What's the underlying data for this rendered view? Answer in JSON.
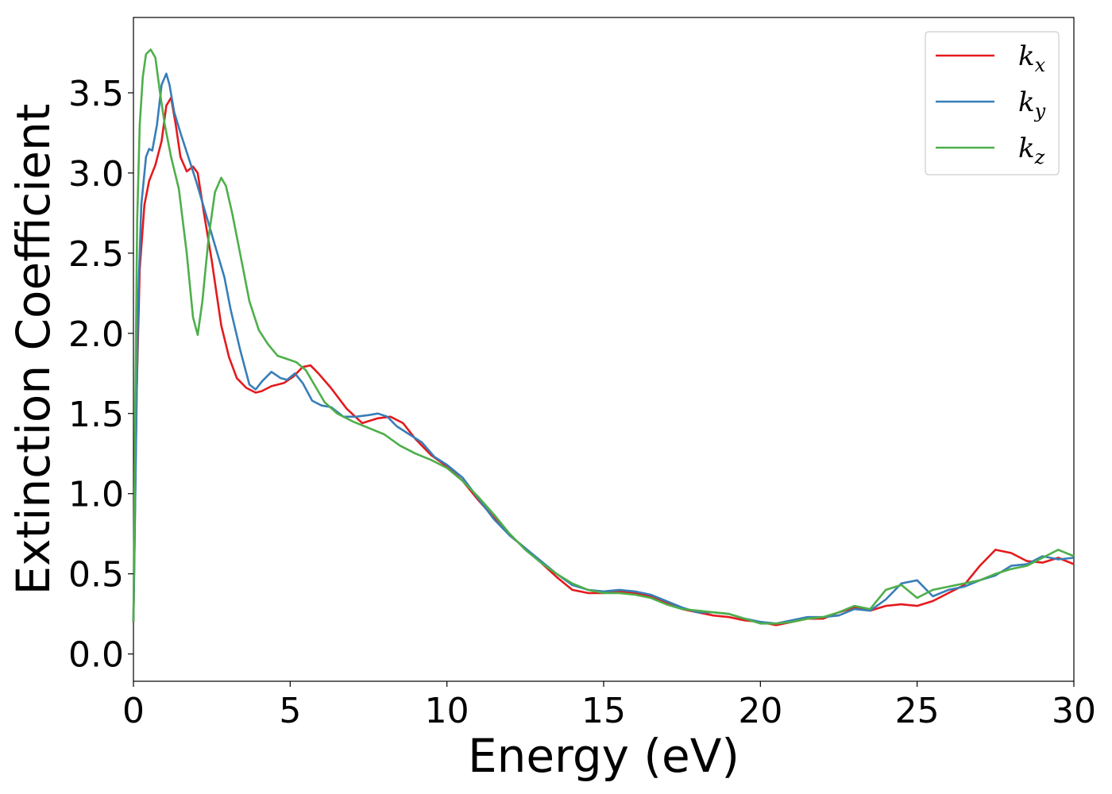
{
  "chart_data": {
    "type": "line",
    "title": "",
    "xlabel": "Energy (eV)",
    "ylabel": "Extinction Coefficient",
    "xlim": [
      0,
      30
    ],
    "ylim": [
      -0.17,
      3.97
    ],
    "xticks": [
      0,
      5,
      10,
      15,
      20,
      25,
      30
    ],
    "xtick_labels": [
      "0",
      "5",
      "10",
      "15",
      "20",
      "25",
      "30"
    ],
    "yticks": [
      0.0,
      0.5,
      1.0,
      1.5,
      2.0,
      2.5,
      3.0,
      3.5
    ],
    "ytick_labels": [
      "0.0",
      "0.5",
      "1.0",
      "1.5",
      "2.0",
      "2.5",
      "3.0",
      "3.5"
    ],
    "grid": false,
    "legend_position": "top-right",
    "series": [
      {
        "name": "kx",
        "base": "k",
        "sub": "x",
        "color": "#e41a1c",
        "x": [
          0,
          0.1,
          0.2,
          0.35,
          0.5,
          0.7,
          0.9,
          1.05,
          1.2,
          1.35,
          1.5,
          1.7,
          1.9,
          2.05,
          2.25,
          2.5,
          2.8,
          3.05,
          3.3,
          3.6,
          3.9,
          4.1,
          4.4,
          4.8,
          5.1,
          5.4,
          5.65,
          5.9,
          6.3,
          6.8,
          7.3,
          7.8,
          8.2,
          8.6,
          9.0,
          9.5,
          10.0,
          10.5,
          11.0,
          11.5,
          12.0,
          12.5,
          13.0,
          13.5,
          14.0,
          14.5,
          15.0,
          15.5,
          16.0,
          16.5,
          17.0,
          17.5,
          18.0,
          18.5,
          19.0,
          19.5,
          20.0,
          20.5,
          21.0,
          21.5,
          22.0,
          22.5,
          23.0,
          23.5,
          24.0,
          24.5,
          25.0,
          25.5,
          26.0,
          26.5,
          27.0,
          27.5,
          28.0,
          28.5,
          29.0,
          29.5,
          30.0
        ],
        "y": [
          0.2,
          1.6,
          2.4,
          2.8,
          2.95,
          3.05,
          3.2,
          3.42,
          3.47,
          3.3,
          3.1,
          3.01,
          3.04,
          3.0,
          2.75,
          2.45,
          2.05,
          1.85,
          1.72,
          1.66,
          1.63,
          1.64,
          1.67,
          1.69,
          1.73,
          1.79,
          1.8,
          1.75,
          1.66,
          1.53,
          1.44,
          1.47,
          1.48,
          1.44,
          1.34,
          1.24,
          1.17,
          1.08,
          0.96,
          0.85,
          0.74,
          0.66,
          0.57,
          0.48,
          0.4,
          0.38,
          0.38,
          0.39,
          0.38,
          0.36,
          0.32,
          0.28,
          0.26,
          0.24,
          0.23,
          0.21,
          0.2,
          0.18,
          0.2,
          0.22,
          0.22,
          0.26,
          0.29,
          0.27,
          0.3,
          0.31,
          0.3,
          0.33,
          0.38,
          0.43,
          0.55,
          0.65,
          0.63,
          0.58,
          0.57,
          0.6,
          0.56
        ]
      },
      {
        "name": "ky",
        "base": "k",
        "sub": "y",
        "color": "#377eb8",
        "x": [
          0,
          0.08,
          0.15,
          0.25,
          0.4,
          0.5,
          0.6,
          0.75,
          0.9,
          1.05,
          1.15,
          1.3,
          1.5,
          1.75,
          2.0,
          2.3,
          2.6,
          2.9,
          3.1,
          3.4,
          3.7,
          3.9,
          4.1,
          4.4,
          4.7,
          4.9,
          5.15,
          5.4,
          5.7,
          6.0,
          6.3,
          6.7,
          7.1,
          7.5,
          7.8,
          8.1,
          8.4,
          8.8,
          9.2,
          9.6,
          10.0,
          10.5,
          11.0,
          11.5,
          12.0,
          12.5,
          13.0,
          13.5,
          14.0,
          14.5,
          15.0,
          15.5,
          16.0,
          16.5,
          17.0,
          17.5,
          18.0,
          18.5,
          19.0,
          19.5,
          20.0,
          20.5,
          21.0,
          21.5,
          22.0,
          22.5,
          23.0,
          23.5,
          24.0,
          24.5,
          25.0,
          25.5,
          26.0,
          26.5,
          27.0,
          27.5,
          28.0,
          28.5,
          29.0,
          29.5,
          30.0
        ],
        "y": [
          0.2,
          1.3,
          2.2,
          2.8,
          3.1,
          3.15,
          3.14,
          3.3,
          3.55,
          3.62,
          3.55,
          3.38,
          3.25,
          3.1,
          2.95,
          2.75,
          2.55,
          2.35,
          2.15,
          1.9,
          1.68,
          1.65,
          1.7,
          1.76,
          1.72,
          1.71,
          1.75,
          1.69,
          1.58,
          1.55,
          1.54,
          1.48,
          1.48,
          1.49,
          1.5,
          1.48,
          1.42,
          1.37,
          1.32,
          1.23,
          1.18,
          1.1,
          0.97,
          0.84,
          0.74,
          0.66,
          0.58,
          0.5,
          0.43,
          0.4,
          0.39,
          0.4,
          0.39,
          0.37,
          0.33,
          0.29,
          0.26,
          0.26,
          0.25,
          0.22,
          0.2,
          0.19,
          0.21,
          0.23,
          0.23,
          0.24,
          0.28,
          0.27,
          0.34,
          0.44,
          0.46,
          0.36,
          0.4,
          0.42,
          0.46,
          0.49,
          0.55,
          0.56,
          0.61,
          0.59,
          0.6
        ]
      },
      {
        "name": "kz",
        "base": "k",
        "sub": "z",
        "color": "#4daf4a",
        "x": [
          0,
          0.06,
          0.12,
          0.2,
          0.3,
          0.4,
          0.55,
          0.7,
          0.85,
          1.0,
          1.2,
          1.45,
          1.7,
          1.9,
          2.05,
          2.2,
          2.4,
          2.6,
          2.8,
          2.95,
          3.15,
          3.4,
          3.7,
          4.0,
          4.3,
          4.6,
          4.9,
          5.2,
          5.5,
          5.8,
          6.1,
          6.5,
          7.0,
          7.5,
          8.0,
          8.5,
          9.0,
          9.5,
          10.0,
          10.5,
          11.0,
          11.5,
          12.0,
          12.5,
          13.0,
          13.5,
          14.0,
          14.5,
          15.0,
          15.5,
          16.0,
          16.5,
          17.0,
          17.5,
          18.0,
          18.5,
          19.0,
          19.5,
          20.0,
          20.5,
          21.0,
          21.5,
          22.0,
          22.5,
          23.0,
          23.5,
          24.0,
          24.5,
          25.0,
          25.5,
          26.0,
          26.5,
          27.0,
          27.5,
          28.0,
          28.5,
          29.0,
          29.5,
          30.0
        ],
        "y": [
          0.2,
          1.6,
          2.7,
          3.3,
          3.6,
          3.74,
          3.77,
          3.72,
          3.5,
          3.3,
          3.1,
          2.9,
          2.5,
          2.1,
          1.99,
          2.2,
          2.6,
          2.88,
          2.97,
          2.92,
          2.75,
          2.5,
          2.2,
          2.02,
          1.93,
          1.86,
          1.84,
          1.82,
          1.77,
          1.67,
          1.57,
          1.5,
          1.45,
          1.41,
          1.37,
          1.3,
          1.25,
          1.21,
          1.16,
          1.08,
          0.98,
          0.87,
          0.75,
          0.65,
          0.57,
          0.5,
          0.44,
          0.4,
          0.38,
          0.38,
          0.37,
          0.35,
          0.31,
          0.28,
          0.27,
          0.26,
          0.25,
          0.22,
          0.19,
          0.19,
          0.2,
          0.22,
          0.23,
          0.26,
          0.3,
          0.28,
          0.4,
          0.43,
          0.35,
          0.4,
          0.42,
          0.44,
          0.46,
          0.5,
          0.53,
          0.55,
          0.6,
          0.65,
          0.61
        ]
      }
    ]
  }
}
